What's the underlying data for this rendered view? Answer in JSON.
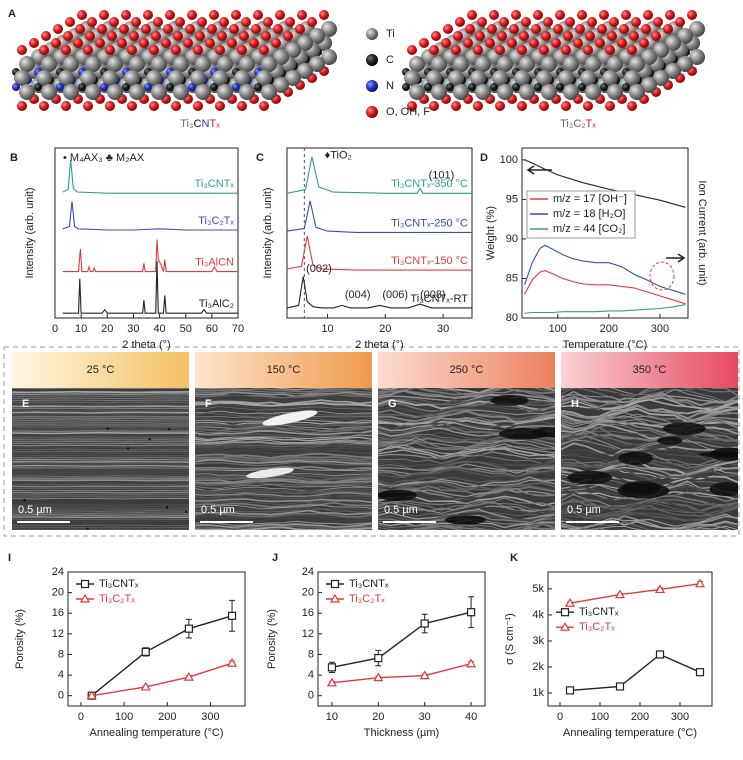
{
  "structure": {
    "letter": "A",
    "legend": [
      "Ti",
      "C",
      "N",
      "O, OH, F"
    ],
    "left_formula": [
      "Ti₃",
      "C",
      "N",
      "Tₓ"
    ],
    "right_formula": [
      "Ti₃C₂",
      "Tₓ"
    ]
  },
  "micrographs": [
    {
      "letter": "E",
      "temperature": "25 °C",
      "scale_bar": "0.5 µm"
    },
    {
      "letter": "F",
      "temperature": "150 °C",
      "scale_bar": "0.5 µm"
    },
    {
      "letter": "G",
      "temperature": "250 °C",
      "scale_bar": "0.5 µm"
    },
    {
      "letter": "H",
      "temperature": "350 °C",
      "scale_bar": "0.5 µm"
    }
  ],
  "chart_data": [
    {
      "type": "line",
      "label": "B",
      "xlabel": "2 theta (°)",
      "ylabel": "Intensity (arb. unit)",
      "xlim": [
        0,
        70
      ],
      "xticks": [
        0,
        10,
        20,
        30,
        40,
        50,
        60,
        70
      ],
      "ylim": [
        -0.3,
        14
      ],
      "annotations": [
        "• M₄AX₃ ♣ M₂AX"
      ],
      "series": [
        {
          "name": "Ti₃AlC₂",
          "color": "#222222",
          "x": [
            3,
            9,
            9.5,
            10,
            18,
            19,
            20,
            33.5,
            34,
            34.5,
            38.5,
            39,
            39.5,
            41.5,
            42,
            42.5,
            56,
            57,
            58,
            70
          ],
          "values": [
            0.1,
            0.1,
            3,
            0.1,
            0.1,
            0.4,
            0.1,
            0.1,
            1.2,
            0.1,
            0.1,
            4.5,
            0.1,
            0.1,
            1.6,
            0.1,
            0.1,
            0.4,
            0.1,
            0.1
          ]
        },
        {
          "name": "Ti₃AlCN",
          "color": "#e03a3e",
          "x": [
            3,
            9,
            9.7,
            10.3,
            12.5,
            13,
            13.5,
            14.5,
            15,
            15.5,
            33.5,
            34,
            34.5,
            38.5,
            39,
            39.5,
            40.5,
            41.5,
            42,
            42.5,
            60,
            61,
            62,
            70
          ],
          "values": [
            3.6,
            3.6,
            5.5,
            3.6,
            3.6,
            4,
            3.6,
            3.6,
            3.9,
            3.6,
            3.6,
            4.3,
            3.6,
            3.6,
            6.3,
            4.6,
            4.2,
            3.6,
            4.6,
            3.6,
            3.6,
            4,
            3.6,
            3.6
          ]
        },
        {
          "name": "Ti₃C₂Tₓ",
          "color": "#3a4cb0",
          "x": [
            3,
            5.5,
            6.5,
            7.5,
            9,
            20,
            30,
            40,
            50,
            60,
            70
          ],
          "values": [
            7.2,
            7.4,
            9.5,
            7.4,
            7.2,
            7.1,
            7.1,
            7.2,
            7.1,
            7.1,
            7.1
          ]
        },
        {
          "name": "Ti₃CNTₓ",
          "color": "#2f9e8f",
          "x": [
            3,
            5,
            6,
            7,
            8.5,
            20,
            30,
            40,
            50,
            60,
            70
          ],
          "values": [
            10.3,
            10.5,
            13,
            10.6,
            10.3,
            10.2,
            10.2,
            10.2,
            10.2,
            10.2,
            10.2
          ]
        }
      ]
    },
    {
      "type": "line",
      "label": "C",
      "xlabel": "2 theta (°)",
      "ylabel": "Intensity (arb. unit)",
      "xlim": [
        3,
        35
      ],
      "xticks": [
        10,
        20,
        30
      ],
      "ylim": [
        -0.5,
        13
      ],
      "reference_x": 6,
      "annotations": [
        "(002)",
        "(004)",
        "(006)",
        "(008)",
        "(101)",
        "♦TiO₂"
      ],
      "series": [
        {
          "name": "Ti₃CNTₓ-RT",
          "color": "#222222",
          "x": [
            3,
            5,
            5.8,
            6.5,
            7.5,
            9,
            11,
            12.5,
            14,
            17,
            19,
            21,
            24,
            26,
            28,
            35
          ],
          "values": [
            0.3,
            0.5,
            2.8,
            0.8,
            0.4,
            0.3,
            0.3,
            0.5,
            0.3,
            0.3,
            0.5,
            0.3,
            0.3,
            0.6,
            0.3,
            0.3
          ]
        },
        {
          "name": "Ti₃CNTₓ-150 °C",
          "color": "#e03a3e",
          "x": [
            3,
            5.5,
            6.5,
            7.5,
            9,
            15,
            25,
            35
          ],
          "values": [
            3.4,
            3.6,
            6,
            3.7,
            3.4,
            3.3,
            3.3,
            3.3
          ]
        },
        {
          "name": "Ti₃CNTₓ-250 °C",
          "color": "#3a4cb0",
          "x": [
            3,
            6,
            7,
            8,
            10,
            15,
            25,
            35
          ],
          "values": [
            6.4,
            6.6,
            8.8,
            6.7,
            6.4,
            6.3,
            6.3,
            6.3
          ]
        },
        {
          "name": "Ti₃CNTₓ-350 °C",
          "color": "#2f9e8f",
          "x": [
            3,
            6.2,
            7.3,
            8.5,
            11,
            20,
            25.5,
            26,
            26.5,
            35
          ],
          "values": [
            9.4,
            9.7,
            12.3,
            9.9,
            9.5,
            9.4,
            9.4,
            9.8,
            9.4,
            9.4
          ]
        }
      ]
    },
    {
      "type": "line",
      "label": "D",
      "xlabel": "Temperature (°C)",
      "ylabel": "Weight (%)",
      "y2label": "Ion Current (arb. unit)",
      "xlim": [
        30,
        355
      ],
      "xticks": [
        100,
        200,
        300
      ],
      "ylim": [
        80,
        101.5
      ],
      "yticks": [
        80,
        85,
        90,
        95,
        100
      ],
      "y2lim": [
        0,
        21.5
      ],
      "legend": "center left",
      "series": [
        {
          "color": "#222222",
          "x": [
            35,
            50,
            75,
            100,
            150,
            200,
            250,
            300,
            350
          ],
          "values": [
            100,
            99.6,
            98.8,
            98.1,
            97.1,
            96.3,
            95.6,
            94.9,
            94
          ]
        },
        {
          "name": "m/z = 17 [OH⁻]",
          "color": "#e03a3e",
          "axis": "y2",
          "x": [
            35,
            50,
            65,
            75,
            90,
            110,
            130,
            150,
            175,
            200,
            225,
            250,
            275,
            300,
            325,
            350
          ],
          "values": [
            3,
            4.8,
            5.8,
            6,
            5.6,
            5,
            4.6,
            4.3,
            4.2,
            4.2,
            4,
            3.8,
            3.3,
            2.8,
            2.3,
            1.8
          ]
        },
        {
          "name": "m/z = 18 [H₂O]",
          "color": "#3a4cb0",
          "axis": "y2",
          "x": [
            35,
            50,
            65,
            75,
            90,
            110,
            130,
            150,
            175,
            200,
            225,
            250,
            275,
            300,
            325,
            350
          ],
          "values": [
            4.2,
            7,
            8.8,
            9.2,
            8.7,
            8,
            7.5,
            7.2,
            7,
            7,
            6.5,
            5.5,
            4.8,
            4,
            3.5,
            3
          ]
        },
        {
          "name": "m/z = 44 [CO₂]",
          "color": "#2f9e8f",
          "axis": "y2",
          "x": [
            35,
            50,
            65,
            75,
            90,
            110,
            130,
            150,
            175,
            200,
            225,
            250,
            275,
            300,
            325,
            350
          ],
          "values": [
            0.6,
            0.7,
            0.7,
            0.7,
            0.7,
            0.8,
            0.8,
            0.8,
            0.8,
            0.9,
            0.9,
            1,
            1.1,
            1.2,
            1.4,
            1.7
          ]
        }
      ]
    },
    {
      "type": "line",
      "label": "I",
      "xlabel": "Annealing temperature (°C)",
      "ylabel": "Porosity (%)",
      "xlim": [
        -30,
        380
      ],
      "xticks": [
        0,
        100,
        200,
        300
      ],
      "ylim": [
        -2,
        24
      ],
      "yticks": [
        0,
        4,
        8,
        12,
        16,
        20,
        24
      ],
      "legend": "upper left",
      "markers": true,
      "x": [
        25,
        150,
        250,
        350
      ],
      "series": [
        {
          "name": "Ti₃CNTₓ",
          "color": "#222222",
          "marker": "square",
          "values": [
            0,
            8.5,
            13,
            15.5
          ],
          "errors": [
            0.3,
            0.8,
            1.8,
            3
          ]
        },
        {
          "name": "Ti₃C₂Tₓ",
          "color": "#e03a3e",
          "marker": "triangle",
          "values": [
            0,
            1.7,
            3.6,
            6.3
          ],
          "errors": [
            0.2,
            0.2,
            0.3,
            0.4
          ]
        }
      ]
    },
    {
      "type": "line",
      "label": "J",
      "xlabel": "Thickness (µm)",
      "ylabel": "Porosity (%)",
      "xlim": [
        7,
        43
      ],
      "xticks": [
        10,
        20,
        30,
        40
      ],
      "ylim": [
        -2,
        24
      ],
      "yticks": [
        0,
        4,
        8,
        12,
        16,
        20,
        24
      ],
      "legend": "upper left",
      "markers": true,
      "x": [
        10,
        20,
        30,
        40
      ],
      "series": [
        {
          "name": "Ti₃CNTₓ",
          "color": "#222222",
          "marker": "square",
          "values": [
            5.5,
            7.3,
            14,
            16.2
          ],
          "errors": [
            1,
            1.5,
            1.8,
            3
          ]
        },
        {
          "name": "Ti₃C₂Tₓ",
          "color": "#e03a3e",
          "marker": "triangle",
          "values": [
            2.5,
            3.5,
            3.9,
            6.2
          ],
          "errors": [
            0.3,
            0.3,
            0.3,
            0.4
          ]
        }
      ]
    },
    {
      "type": "line",
      "label": "K",
      "xlabel": "Annealing temperature (°C)",
      "ylabel": "σ (S cm⁻¹)",
      "xlim": [
        -30,
        380
      ],
      "xticks": [
        0,
        100,
        200,
        300
      ],
      "ylim": [
        500,
        5650
      ],
      "yticks": [
        {
          "value": 1000,
          "label": "1k"
        },
        {
          "value": 2000,
          "label": "2k"
        },
        {
          "value": 3000,
          "label": "3k"
        },
        {
          "value": 4000,
          "label": "4k"
        },
        {
          "value": 5000,
          "label": "5k"
        }
      ],
      "legend": "center left",
      "markers": true,
      "x": [
        25,
        150,
        250,
        350
      ],
      "series": [
        {
          "name": "Ti₃CNTₓ",
          "color": "#222222",
          "marker": "square",
          "values": [
            1100,
            1250,
            2480,
            1800
          ],
          "errors": [
            40,
            40,
            50,
            80
          ]
        },
        {
          "name": "Ti₃C₂Tₓ",
          "color": "#e03a3e",
          "marker": "triangle",
          "values": [
            4450,
            4780,
            4980,
            5200
          ],
          "errors": [
            40,
            50,
            60,
            80
          ]
        }
      ]
    }
  ]
}
